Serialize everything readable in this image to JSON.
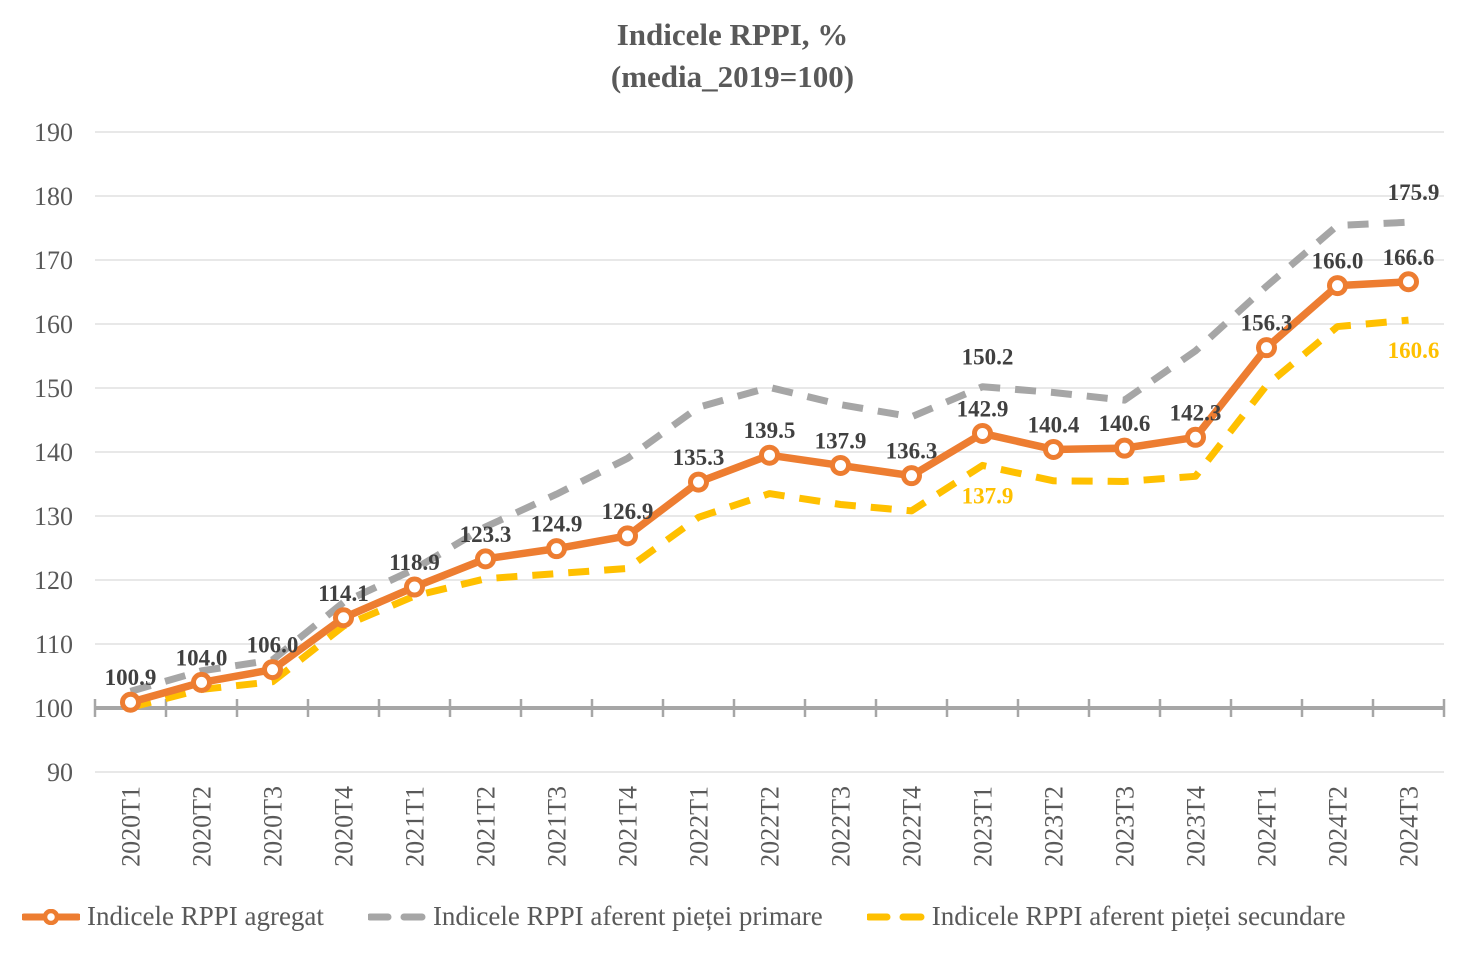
{
  "title": "Indicele RPPI, %",
  "subtitle": "(media_2019=100)",
  "chart_data": {
    "type": "line",
    "title": "Indicele RPPI, %",
    "subtitle": "(media_2019=100)",
    "categories": [
      "2020T1",
      "2020T2",
      "2020T3",
      "2020T4",
      "2021T1",
      "2021T2",
      "2021T3",
      "2021T4",
      "2022T1",
      "2022T2",
      "2022T3",
      "2022T4",
      "2023T1",
      "2023T2",
      "2023T3",
      "2023T4",
      "2024T1",
      "2024T2",
      "2024T3"
    ],
    "series": [
      {
        "name": "Indicele RPPI agregat",
        "color": "#ED7D31",
        "style": "solid",
        "marker": "circle",
        "values": [
          100.9,
          104.0,
          106.0,
          114.1,
          118.9,
          123.3,
          124.9,
          126.9,
          135.3,
          139.5,
          137.9,
          136.3,
          142.9,
          140.4,
          140.6,
          142.3,
          156.3,
          166.0,
          166.6
        ],
        "labeled_points": "all",
        "label_color": "#404040"
      },
      {
        "name": "Indicele RPPI aferent pieței primare",
        "color": "#A6A6A6",
        "style": "dashed",
        "marker": "none",
        "values": [
          102.6,
          105.8,
          107.5,
          116.5,
          121.7,
          128.3,
          133.4,
          139.0,
          147.0,
          150.1,
          147.4,
          145.5,
          150.2,
          149.3,
          148.1,
          155.8,
          165.9,
          175.4,
          175.9
        ],
        "labeled_points": [
          12,
          18
        ],
        "label_color": "#404040"
      },
      {
        "name": "Indicele RPPI aferent pieței secundare",
        "color": "#FFC000",
        "style": "dashed",
        "marker": "none",
        "values": [
          100.1,
          102.9,
          104.1,
          112.8,
          117.5,
          120.2,
          121.0,
          121.8,
          129.8,
          133.5,
          131.8,
          130.8,
          137.9,
          135.5,
          135.4,
          136.2,
          150.4,
          159.6,
          160.6
        ],
        "labeled_points": [
          12,
          18
        ],
        "label_color": "#FFC000"
      }
    ],
    "ylim": [
      90,
      190
    ],
    "yticks": [
      190,
      180,
      170,
      160,
      150,
      140,
      130,
      120,
      110,
      100,
      90
    ],
    "baseline_value": 100,
    "grid": "horizontal",
    "legend_position": "bottom",
    "axis_color": "#A6A6A6",
    "gridline_color": "#D9D9D9",
    "tick_label_color": "#595959"
  }
}
